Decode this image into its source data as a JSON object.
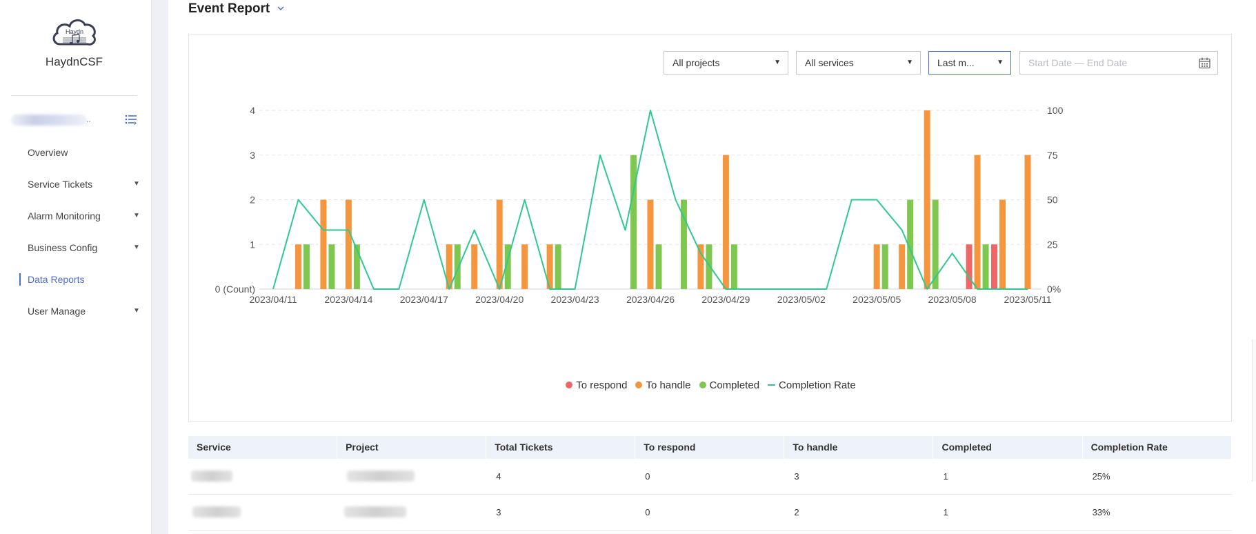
{
  "app": {
    "logo_text": "Haydn",
    "brand_name": "HaydnCSF",
    "user_suffix": "..",
    "icons": {
      "logo": "haydn-cloud-logo-icon",
      "menu_toggle": "list-icon",
      "dropdown": "caret-down-icon",
      "calendar": "calendar-icon"
    },
    "accent_color": "#4a6cd4"
  },
  "sidebar": {
    "items": [
      {
        "label": "Overview",
        "has_submenu": false,
        "active": false
      },
      {
        "label": "Service Tickets",
        "has_submenu": true,
        "active": false
      },
      {
        "label": "Alarm Monitoring",
        "has_submenu": true,
        "active": false
      },
      {
        "label": "Business Config",
        "has_submenu": true,
        "active": false
      },
      {
        "label": "Data Reports",
        "has_submenu": false,
        "active": true
      },
      {
        "label": "User Manage",
        "has_submenu": true,
        "active": false
      }
    ]
  },
  "page": {
    "title": "Event Report"
  },
  "filters": {
    "project": "All projects",
    "service": "All services",
    "period": "Last m...",
    "date_placeholder": "Start Date — End Date"
  },
  "chart_data": {
    "type": "bar",
    "title": "",
    "xlabel": "",
    "ylabel": "",
    "y_left_unit": "(Count)",
    "ylim": [
      0,
      4
    ],
    "y2lim": [
      0,
      100
    ],
    "y_ticks": [
      "0 (Count)",
      "1",
      "2",
      "3",
      "4"
    ],
    "y2_ticks": [
      "0%",
      "25",
      "50",
      "75",
      "100"
    ],
    "grid": true,
    "legend_position": "bottom",
    "x_ticks": [
      "2023/04/11",
      "2023/04/14",
      "2023/04/17",
      "2023/04/20",
      "2023/04/23",
      "2023/04/26",
      "2023/04/29",
      "2023/05/02",
      "2023/05/05",
      "2023/05/08",
      "2023/05/11"
    ],
    "categories": [
      "2023/04/11",
      "2023/04/12",
      "2023/04/13",
      "2023/04/14",
      "2023/04/15",
      "2023/04/16",
      "2023/04/17",
      "2023/04/18",
      "2023/04/19",
      "2023/04/20",
      "2023/04/21",
      "2023/04/22",
      "2023/04/23",
      "2023/04/24",
      "2023/04/25",
      "2023/04/26",
      "2023/04/27",
      "2023/04/28",
      "2023/04/29",
      "2023/04/30",
      "2023/05/01",
      "2023/05/02",
      "2023/05/03",
      "2023/05/04",
      "2023/05/05",
      "2023/05/06",
      "2023/05/07",
      "2023/05/08",
      "2023/05/09",
      "2023/05/10",
      "2023/05/11"
    ],
    "series": [
      {
        "name": "To respond",
        "type": "bar",
        "axis": "left",
        "color": "#ee6666",
        "values": [
          0,
          0,
          0,
          0,
          0,
          0,
          0,
          0,
          0,
          0,
          0,
          0,
          0,
          0,
          0,
          0,
          0,
          0,
          0,
          0,
          0,
          0,
          0,
          0,
          0,
          0,
          0,
          0,
          1,
          1,
          0
        ]
      },
      {
        "name": "To handle",
        "type": "bar",
        "axis": "left",
        "color": "#f5963f",
        "values": [
          0,
          1,
          2,
          2,
          0,
          0,
          0,
          1,
          1,
          2,
          1,
          1,
          0,
          0,
          0,
          2,
          0,
          1,
          3,
          0,
          0,
          0,
          0,
          0,
          1,
          1,
          4,
          0,
          3,
          2,
          3
        ]
      },
      {
        "name": "Completed",
        "type": "bar",
        "axis": "left",
        "color": "#7ec850",
        "values": [
          0,
          1,
          1,
          1,
          0,
          0,
          0,
          1,
          0,
          1,
          0,
          1,
          0,
          0,
          3,
          1,
          2,
          1,
          1,
          0,
          0,
          0,
          0,
          0,
          1,
          2,
          2,
          0,
          1,
          0,
          0
        ]
      },
      {
        "name": "Completion Rate",
        "type": "line",
        "axis": "right",
        "color": "#2ec98f",
        "values": [
          0,
          50,
          33,
          33,
          0,
          0,
          50,
          0,
          33,
          0,
          50,
          0,
          0,
          75,
          33,
          100,
          50,
          20,
          0,
          0,
          0,
          0,
          0,
          50,
          50,
          33,
          0,
          20,
          0,
          0,
          0
        ]
      }
    ]
  },
  "table": {
    "columns": [
      "Service",
      "Project",
      "Total Tickets",
      "To respond",
      "To handle",
      "Completed",
      "Completion Rate"
    ],
    "rows": [
      {
        "service": "",
        "project": "",
        "total": "4",
        "to_respond": "0",
        "to_handle": "3",
        "completed": "1",
        "rate": "25%"
      },
      {
        "service": "",
        "project": "",
        "total": "3",
        "to_respond": "0",
        "to_handle": "2",
        "completed": "1",
        "rate": "33%"
      }
    ]
  }
}
